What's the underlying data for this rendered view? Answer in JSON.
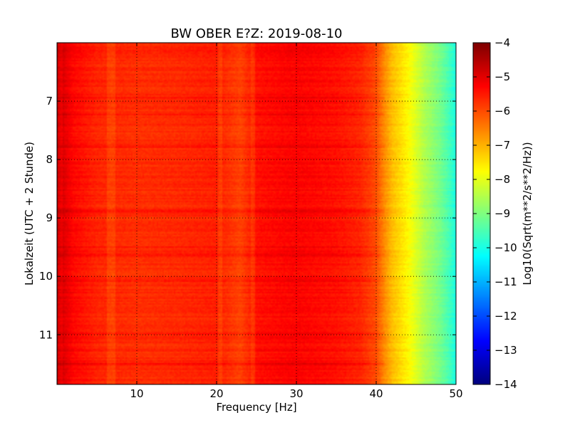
{
  "chart_data": {
    "type": "heatmap",
    "title": "BW OBER E?Z: 2019-08-10",
    "xlabel": "Frequency [Hz]",
    "ylabel": "Lokalzeit (UTC + 2 Stunde)",
    "xlim": [
      0,
      50
    ],
    "ylim": [
      6.0,
      11.85
    ],
    "y_inverted": true,
    "x_ticks": [
      10,
      20,
      30,
      40,
      50
    ],
    "y_ticks": [
      7,
      8,
      9,
      10,
      11
    ],
    "grid": true,
    "grid_style": "dotted",
    "colormap": "jet",
    "colorbar": {
      "label": "Log10(Sqrt(m**2/s**2/Hz))",
      "range": [
        -14,
        -4
      ],
      "ticks": [
        -4,
        -5,
        -6,
        -7,
        -8,
        -9,
        -10,
        -11,
        -12,
        -13,
        -14
      ]
    },
    "profile_description_values": {
      "frequency_hz": [
        0,
        1,
        2,
        5,
        10,
        15,
        20,
        23,
        25,
        28,
        30,
        35,
        38,
        40,
        41,
        42,
        43,
        44,
        45,
        46,
        47,
        48,
        49,
        50
      ],
      "log10_amplitude": [
        -4.6,
        -5.0,
        -5.3,
        -5.6,
        -5.7,
        -5.65,
        -5.55,
        -5.9,
        -5.4,
        -5.3,
        -5.25,
        -5.4,
        -5.6,
        -6.0,
        -6.6,
        -7.1,
        -7.4,
        -7.7,
        -8.1,
        -8.5,
        -8.8,
        -9.1,
        -9.5,
        -10.0
      ]
    },
    "bright_time_bands": [
      6.15,
      6.95,
      7.22,
      7.78,
      8.88,
      9.5,
      9.63,
      10.08,
      10.98,
      11.5
    ],
    "dim_frequency_bands_hz": [
      0.5,
      6.5,
      7.0,
      20.5,
      24.5
    ]
  }
}
